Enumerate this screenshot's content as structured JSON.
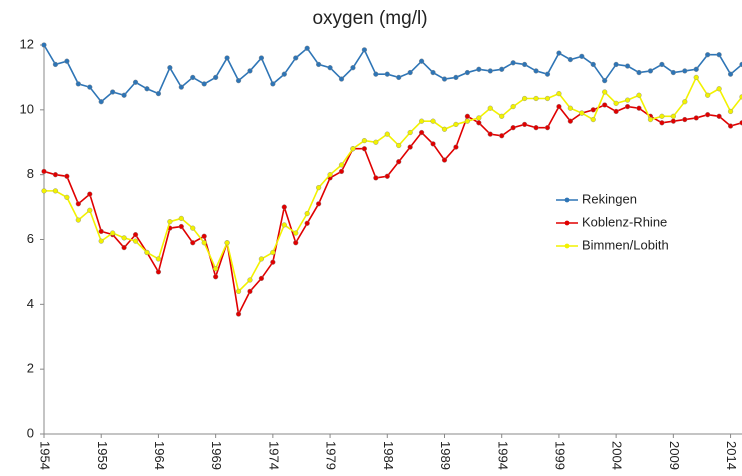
{
  "chart_data": {
    "type": "line",
    "title": "oxygen (mg/l)",
    "x": [
      1954,
      1955,
      1956,
      1957,
      1958,
      1959,
      1960,
      1961,
      1962,
      1963,
      1964,
      1965,
      1966,
      1967,
      1968,
      1969,
      1970,
      1971,
      1972,
      1973,
      1974,
      1975,
      1976,
      1977,
      1978,
      1979,
      1980,
      1981,
      1982,
      1983,
      1984,
      1985,
      1986,
      1987,
      1988,
      1989,
      1990,
      1991,
      1992,
      1993,
      1994,
      1995,
      1996,
      1997,
      1998,
      1999,
      2000,
      2001,
      2002,
      2003,
      2004,
      2005,
      2006,
      2007,
      2008,
      2009,
      2010,
      2011,
      2012,
      2013,
      2014,
      2015
    ],
    "series": [
      {
        "name": "Rekingen",
        "color": "#2e75b6",
        "values": [
          12.0,
          11.4,
          11.5,
          10.8,
          10.7,
          10.25,
          10.55,
          10.45,
          10.85,
          10.65,
          10.5,
          11.3,
          10.7,
          11.0,
          10.8,
          11.0,
          11.6,
          10.9,
          11.2,
          11.6,
          10.8,
          11.1,
          11.6,
          11.9,
          11.4,
          11.3,
          10.95,
          11.3,
          11.85,
          11.1,
          11.1,
          11.0,
          11.15,
          11.5,
          11.15,
          10.95,
          11.0,
          11.15,
          11.25,
          11.2,
          11.25,
          11.45,
          11.4,
          11.2,
          11.1,
          11.75,
          11.55,
          11.65,
          11.4,
          10.9,
          11.4,
          11.35,
          11.15,
          11.2,
          11.4,
          11.15,
          11.2,
          11.25,
          11.7,
          11.7,
          11.1,
          11.4
        ]
      },
      {
        "name": "Koblenz-Rhine",
        "color": "#e00000",
        "values": [
          8.1,
          8.0,
          7.95,
          7.1,
          7.4,
          6.25,
          6.15,
          5.75,
          6.15,
          5.6,
          5.0,
          6.35,
          6.4,
          5.9,
          6.1,
          4.85,
          5.9,
          3.7,
          4.4,
          4.8,
          5.3,
          7.0,
          5.9,
          6.5,
          7.1,
          7.9,
          8.1,
          8.8,
          8.8,
          7.9,
          7.95,
          8.4,
          8.85,
          9.3,
          8.95,
          8.45,
          8.85,
          9.8,
          9.6,
          9.25,
          9.2,
          9.45,
          9.55,
          9.45,
          9.45,
          10.1,
          9.65,
          9.9,
          10.0,
          10.15,
          9.95,
          10.1,
          10.05,
          9.8,
          9.6,
          9.65,
          9.7,
          9.75,
          9.85,
          9.8,
          9.5,
          9.6
        ]
      },
      {
        "name": "Bimmen/Lobith",
        "color": "#f2f200",
        "values": [
          7.5,
          7.5,
          7.3,
          6.6,
          6.9,
          5.95,
          6.2,
          6.05,
          5.95,
          5.6,
          5.4,
          6.55,
          6.65,
          6.35,
          5.9,
          5.1,
          5.9,
          4.4,
          4.75,
          5.4,
          5.6,
          6.45,
          6.2,
          6.8,
          7.6,
          8.0,
          8.3,
          8.8,
          9.05,
          9.0,
          9.25,
          8.9,
          9.3,
          9.65,
          9.65,
          9.4,
          9.55,
          9.65,
          9.75,
          10.05,
          9.8,
          10.1,
          10.35,
          10.35,
          10.35,
          10.5,
          10.05,
          9.9,
          9.7,
          10.55,
          10.2,
          10.3,
          10.45,
          9.7,
          9.8,
          9.8,
          10.25,
          11.0,
          10.45,
          10.65,
          9.95,
          10.4
        ]
      }
    ],
    "xlim": [
      1954,
      2015
    ],
    "xticks": [
      1954,
      1959,
      1964,
      1969,
      1974,
      1979,
      1984,
      1989,
      1994,
      1999,
      2004,
      2009,
      2014
    ],
    "ylim": [
      0,
      12
    ],
    "yticks": [
      0,
      2,
      4,
      6,
      8,
      10,
      12
    ],
    "grid": false,
    "legend": "right"
  }
}
